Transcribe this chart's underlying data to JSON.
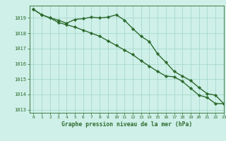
{
  "line1_x": [
    0,
    1,
    2,
    3,
    4,
    5,
    6,
    7,
    8,
    9,
    10,
    11,
    12,
    13,
    14,
    15,
    16,
    17,
    18,
    19,
    20,
    21,
    22,
    23
  ],
  "line1_y": [
    1019.55,
    1019.2,
    1019.0,
    1018.85,
    1018.65,
    1018.9,
    1018.95,
    1019.05,
    1019.0,
    1019.05,
    1019.2,
    1018.85,
    1018.3,
    1017.8,
    1017.45,
    1016.65,
    1016.1,
    1015.5,
    1015.2,
    1014.9,
    1014.45,
    1014.05,
    1013.95,
    1013.4
  ],
  "line2_x": [
    0,
    1,
    2,
    3,
    4,
    5,
    6,
    7,
    8,
    9,
    10,
    11,
    12,
    13,
    14,
    15,
    16,
    17,
    18,
    19,
    20,
    21,
    22,
    23
  ],
  "line2_y": [
    1019.55,
    1019.2,
    1019.0,
    1018.7,
    1018.55,
    1018.4,
    1018.2,
    1018.0,
    1017.8,
    1017.5,
    1017.2,
    1016.9,
    1016.6,
    1016.2,
    1015.85,
    1015.5,
    1015.2,
    1015.15,
    1014.85,
    1014.4,
    1013.95,
    1013.8,
    1013.4,
    1013.4
  ],
  "line_color": "#2d6a2d",
  "bg_color": "#cef0e8",
  "grid_color": "#a8d8cc",
  "xlabel": "Graphe pression niveau de la mer (hPa)",
  "ylim": [
    1012.8,
    1019.8
  ],
  "xlim": [
    -0.5,
    23
  ],
  "yticks": [
    1013,
    1014,
    1015,
    1016,
    1017,
    1018,
    1019
  ],
  "xticks": [
    0,
    1,
    2,
    3,
    4,
    5,
    6,
    7,
    8,
    9,
    10,
    11,
    12,
    13,
    14,
    15,
    16,
    17,
    18,
    19,
    20,
    21,
    22,
    23
  ],
  "marker": "D",
  "markersize": 2.2,
  "linewidth": 1.0
}
